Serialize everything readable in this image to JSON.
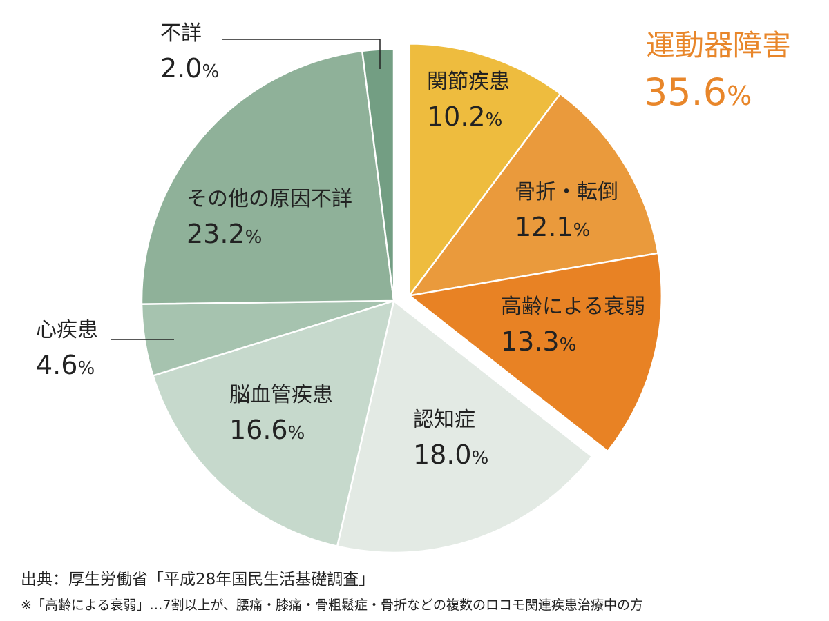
{
  "chart_data": {
    "type": "pie",
    "unit": "%",
    "slices": [
      {
        "label": "関節疾患",
        "value": 10.2,
        "color": "#EEBC3E",
        "exploded": true
      },
      {
        "label": "骨折・転倒",
        "value": 12.1,
        "color": "#EA9A3C",
        "exploded": true
      },
      {
        "label": "高齢による衰弱",
        "value": 13.3,
        "color": "#E88224",
        "exploded": true
      },
      {
        "label": "認知症",
        "value": 18.0,
        "color": "#E3EAE4",
        "exploded": false
      },
      {
        "label": "脳血管疾患",
        "value": 16.6,
        "color": "#C6D9CC",
        "exploded": false
      },
      {
        "label": "心疾患",
        "value": 4.6,
        "color": "#A6C3AF",
        "exploded": false
      },
      {
        "label": "その他の原因不詳",
        "value": 23.2,
        "color": "#8FB199",
        "exploded": false
      },
      {
        "label": "不詳",
        "value": 2.0,
        "color": "#739E83",
        "exploded": false
      }
    ],
    "group": {
      "title": "運動器障害",
      "value": 35.6,
      "color": "#E8862A"
    }
  },
  "footer": {
    "source": "出典：厚生労働省「平成28年国民生活基礎調査」",
    "note": "※「高齢による衰弱」…7割以上が、腰痛・膝痛・骨粗鬆症・骨折などの複数のロコモ関連疾患治療中の方"
  }
}
